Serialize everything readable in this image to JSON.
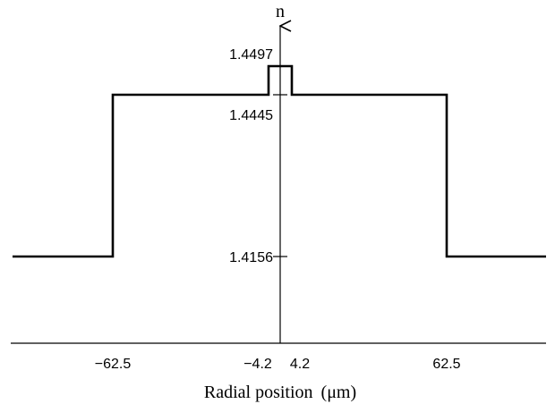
{
  "chart_data": {
    "type": "line",
    "title": "",
    "xlabel": "Radial position",
    "xlabel_unit": "(μm)",
    "ylabel": "n",
    "x_ticks": [
      -62.5,
      -4.2,
      4.2,
      62.5
    ],
    "x_tick_labels": [
      "−62.5",
      "−4.2",
      "4.2",
      "62.5"
    ],
    "y_ticks": [
      1.4497,
      1.4445,
      1.4156
    ],
    "y_tick_labels": [
      "1.4497",
      "1.4445",
      "1.4156"
    ],
    "xlim": [
      -101,
      101
    ],
    "y_segments": [
      {
        "x": [
          -101,
          -62.5
        ],
        "y": 1.4156
      },
      {
        "x": [
          -62.5,
          -4.2
        ],
        "y": 1.4445
      },
      {
        "x": [
          -4.2,
          4.2
        ],
        "y": 1.4497
      },
      {
        "x": [
          4.2,
          62.5
        ],
        "y": 1.4445
      },
      {
        "x": [
          62.5,
          101
        ],
        "y": 1.4156
      }
    ],
    "series": [
      {
        "x": [
          -101,
          -62.5,
          -62.5,
          -4.2,
          -4.2,
          4.2,
          4.2,
          62.5,
          62.5,
          101
        ],
        "y": [
          1.4156,
          1.4156,
          1.4445,
          1.4445,
          1.4497,
          1.4497,
          1.4445,
          1.4445,
          1.4156,
          1.4156
        ]
      }
    ],
    "grid": false,
    "legend": "none"
  }
}
